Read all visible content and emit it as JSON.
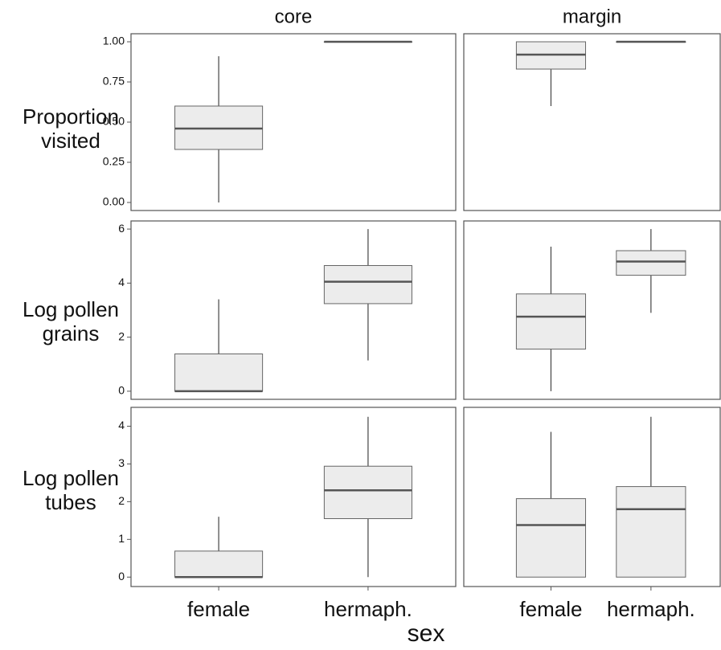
{
  "columns": [
    "core",
    "margin"
  ],
  "rows": [
    "Proportion visited",
    "Log pollen grains",
    "Log pollen tubes"
  ],
  "categories": [
    "female",
    "hermaph."
  ],
  "xlabel": "sex",
  "chart_data": [
    {
      "type": "box",
      "ylim": [
        -0.05,
        1.05
      ],
      "yticks": [
        {
          "value": 0,
          "label": "0.00"
        },
        0.25,
        {
          "value": 0.5,
          "label": "0.50"
        },
        0.75,
        {
          "value": 1,
          "label": "1.00"
        }
      ],
      "whisker_low": [
        0,
        1
      ],
      "q1": [
        0.33,
        1
      ],
      "median": [
        0.46,
        1
      ],
      "q3": [
        0.6,
        1
      ],
      "whisker_high": [
        0.91,
        1
      ]
    },
    {
      "type": "box",
      "ylim": [
        -0.05,
        1.05
      ],
      "whisker_low": [
        0.6,
        1
      ],
      "q1": [
        0.83,
        1
      ],
      "median": [
        0.92,
        1
      ],
      "q3": [
        1,
        1
      ],
      "whisker_high": [
        1,
        1
      ]
    },
    {
      "type": "box",
      "ylim": [
        -0.3,
        6.3
      ],
      "yticks": [
        0,
        2,
        4,
        6
      ],
      "whisker_low": [
        0,
        1.14
      ],
      "q1": [
        0,
        3.24
      ],
      "median": [
        0,
        4.05
      ],
      "q3": [
        1.38,
        4.65
      ],
      "whisker_high": [
        3.4,
        6
      ]
    },
    {
      "type": "box",
      "ylim": [
        -0.3,
        6.3
      ],
      "whisker_low": [
        0,
        2.9
      ],
      "q1": [
        1.56,
        4.29
      ],
      "median": [
        2.76,
        4.8
      ],
      "q3": [
        3.6,
        5.2
      ],
      "whisker_high": [
        5.35,
        6
      ]
    },
    {
      "type": "box",
      "ylim": [
        -0.25,
        4.5
      ],
      "yticks": [
        0,
        1,
        2,
        3,
        4
      ],
      "whisker_low": [
        0,
        0
      ],
      "q1": [
        0,
        1.55
      ],
      "median": [
        0,
        2.3
      ],
      "q3": [
        0.69,
        2.94
      ],
      "whisker_high": [
        1.6,
        4.25
      ]
    },
    {
      "type": "box",
      "ylim": [
        -0.25,
        4.5
      ],
      "whisker_low": [
        0,
        0
      ],
      "q1": [
        0,
        0
      ],
      "median": [
        1.38,
        1.8
      ],
      "q3": [
        2.08,
        2.4
      ],
      "whisker_high": [
        3.85,
        4.25
      ]
    }
  ]
}
